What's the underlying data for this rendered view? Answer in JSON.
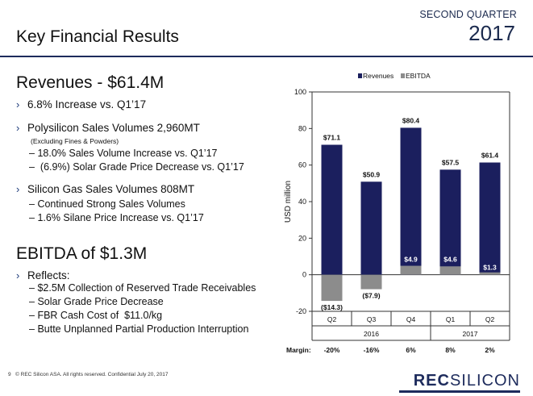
{
  "header": {
    "quarter": "SECOND QUARTER",
    "year": "2017",
    "title": "Key Financial Results"
  },
  "revenues": {
    "heading": "Revenues - $61.4M",
    "bullets": [
      {
        "text": "6.8% Increase vs. Q1’17"
      },
      {
        "text": "Polysilicon Sales Volumes 2,960MT",
        "note": "(Excluding Fines & Powders)",
        "subs": [
          "18.0%  Sales Volume Increase vs. Q1’17",
          " (6.9%) Solar Grade Price Decrease vs. Q1’17"
        ]
      },
      {
        "text": "Silicon Gas Sales Volumes 808MT",
        "subs": [
          "Continued Strong Sales Volumes",
          "1.6% Silane Price Increase vs. Q1’17"
        ]
      }
    ]
  },
  "ebitda": {
    "heading": "EBITDA of $1.3M",
    "reflects": "Reflects:",
    "subs": [
      "$2.5M Collection of Reserved Trade Receivables",
      "Solar Grade Price Decrease",
      "FBR Cash Cost of  $11.0/kg",
      "Butte Unplanned Partial Production Interruption"
    ]
  },
  "footer": {
    "page": "9",
    "copyright": "©  REC Silicon ASA. All rights reserved. Confidential  July 20, 2017",
    "logo_a": "REC",
    "logo_b": "SILICON"
  },
  "chart_data": {
    "type": "bar",
    "categories": [
      "Q2",
      "Q3",
      "Q4",
      "Q1",
      "Q2"
    ],
    "groups": [
      {
        "label": "2016",
        "span": [
          0,
          2
        ]
      },
      {
        "label": "2017",
        "span": [
          3,
          4
        ]
      }
    ],
    "series": [
      {
        "name": "Revenues",
        "color": "#1b1f5e",
        "values": [
          71.1,
          50.9,
          80.4,
          57.5,
          61.4
        ],
        "labels": [
          "$71.1",
          "$50.9",
          "$80.4",
          "$57.5",
          "$61.4"
        ]
      },
      {
        "name": "EBITDA",
        "color": "#8c8c8c",
        "values": [
          -14.3,
          -7.9,
          4.9,
          4.6,
          1.3
        ],
        "labels": [
          "($14.3)",
          "($7.9)",
          "$4.9",
          "$4.6",
          "$1.3"
        ]
      }
    ],
    "ylabel": "USD million",
    "ylim": [
      -20,
      100
    ],
    "yticks": [
      -20,
      0,
      20,
      40,
      60,
      80,
      100
    ],
    "margin_label": "Margin:",
    "margins": [
      "-20%",
      "-16%",
      "6%",
      "8%",
      "2%"
    ],
    "legend": "top-right",
    "grid": false
  }
}
